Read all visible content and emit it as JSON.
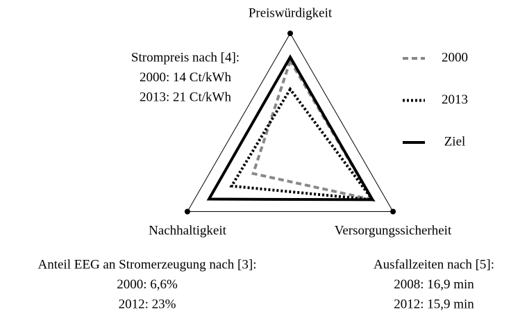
{
  "chart_data": {
    "type": "radar",
    "axes": [
      "Preiswürdigkeit",
      "Nachhaltigkeit",
      "Versorgungssicherheit"
    ],
    "rlim": [
      0,
      1
    ],
    "series": [
      {
        "name": "2000",
        "color": "#888888",
        "style": "dashed",
        "values": [
          0.77,
          0.36,
          0.8
        ]
      },
      {
        "name": "2013",
        "color": "#000000",
        "style": "dotted",
        "values": [
          0.53,
          0.57,
          0.8
        ]
      },
      {
        "name": "Ziel",
        "color": "#000000",
        "style": "solid",
        "values": [
          0.8,
          0.79,
          0.8
        ]
      }
    ],
    "annotations": [
      {
        "lines": [
          "Strompreis nach [4]:",
          "2000: 14 Ct/kWh",
          "2013: 21 Ct/kWh"
        ]
      },
      {
        "lines": [
          "Anteil EEG an Stromerzeugung nach [3]:",
          "2000: 6,6%",
          "2012: 23%"
        ]
      },
      {
        "lines": [
          "Ausfallzeiten nach [5]:",
          "2008: 16,9 min",
          "2012: 15,9 min"
        ]
      }
    ]
  }
}
